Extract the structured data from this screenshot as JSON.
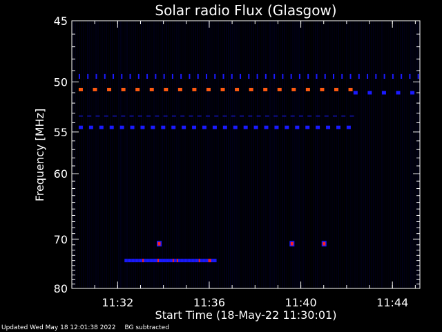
{
  "chart_data": {
    "type": "heatmap",
    "title": "Solar radio Flux (Glasgow)",
    "xlabel": "Start Time (18-May-22 11:30:01)",
    "ylabel": "Frequency [MHz]",
    "x_unit": "minutes after 11:30:01",
    "xlim": [
      0,
      15.2
    ],
    "ylim": [
      45,
      80
    ],
    "x_ticks": [
      {
        "value": 2,
        "label": "11:32"
      },
      {
        "value": 6,
        "label": "11:36"
      },
      {
        "value": 10,
        "label": "11:40"
      },
      {
        "value": 14,
        "label": "11:44"
      }
    ],
    "y_ticks": [
      45,
      50,
      55,
      60,
      70,
      80
    ],
    "background": "#000000",
    "colors": {
      "frame": "#ffffff",
      "dash_blue": "#1a1aff",
      "dash_orange": "#ff5a10",
      "burst_red": "#ff2020",
      "noise": "#000033"
    },
    "features": [
      {
        "kind": "dashed-line",
        "freq": 49.5,
        "x_start": 0.3,
        "x_end": 15.2,
        "spacing": 0.37,
        "color": "#1a1aff",
        "style": "tick"
      },
      {
        "kind": "dashed-line",
        "freq": 50.7,
        "x_start": 0.3,
        "x_end": 12.3,
        "spacing": 0.62,
        "color": "#ff5a10"
      },
      {
        "kind": "dashed-line",
        "freq": 51.0,
        "x_start": 12.3,
        "x_end": 15.2,
        "spacing": 0.62,
        "color": "#1a1aff"
      },
      {
        "kind": "dashed-line",
        "freq": 53.3,
        "x_start": 0.3,
        "x_end": 12.3,
        "spacing": 0.37,
        "color": "#1a1aff",
        "style": "faint"
      },
      {
        "kind": "dashed-line",
        "freq": 54.5,
        "x_start": 0.3,
        "x_end": 12.3,
        "spacing": 0.45,
        "color": "#1a1aff"
      },
      {
        "kind": "burst",
        "freq": 74.0,
        "x_start": 2.3,
        "x_end": 6.3,
        "color": "#1a1aff",
        "highlight": "#ff2020"
      },
      {
        "kind": "spot",
        "freq": 70.8,
        "x": 3.8,
        "color": "#ff2020"
      },
      {
        "kind": "spot",
        "freq": 70.8,
        "x": 9.6,
        "color": "#ff2020"
      },
      {
        "kind": "spot",
        "freq": 70.8,
        "x": 11.0,
        "color": "#ff2020"
      }
    ]
  },
  "footer": {
    "updated": "Updated Wed May 18 12:01:38 2022",
    "note": "BG subtracted"
  }
}
